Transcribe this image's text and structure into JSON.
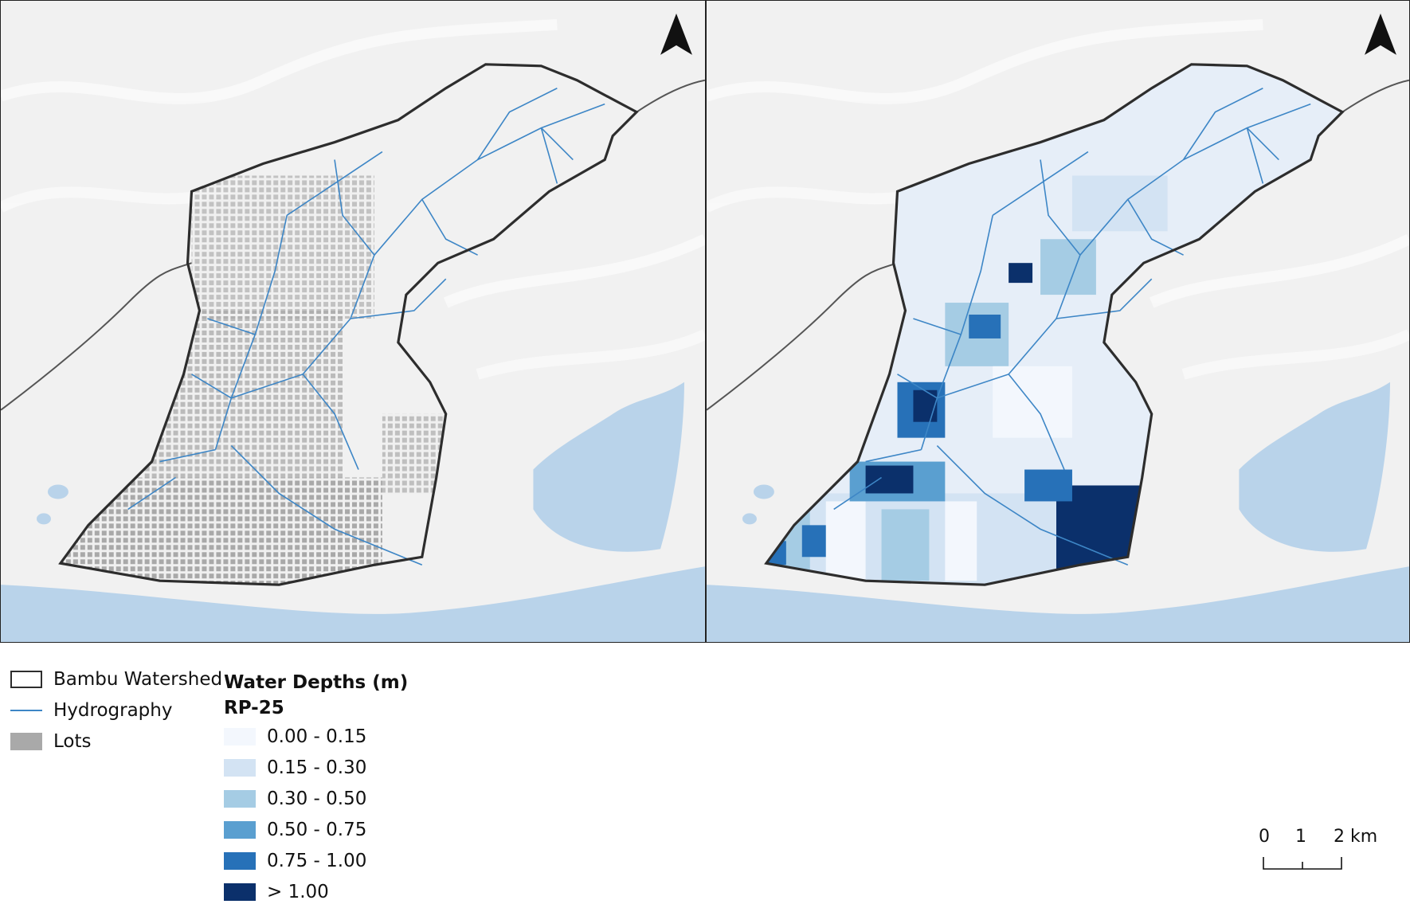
{
  "maps": {
    "left": {
      "content": "Bambu Watershed with hydrography and lots"
    },
    "right": {
      "content": "Bambu Watershed flood water depths RP-25"
    }
  },
  "legend": {
    "watershed": "Bambu Watershed",
    "hydrography": "Hydrography",
    "lots": "Lots",
    "depth_title": "Water Depths (m)",
    "scenario": "RP-25",
    "classes": [
      {
        "label": "0.00 - 0.15",
        "color": "#f3f7fd"
      },
      {
        "label": "0.15 - 0.30",
        "color": "#d3e3f3"
      },
      {
        "label": "0.30 - 0.50",
        "color": "#a5cce4"
      },
      {
        "label": "0.50 - 0.75",
        "color": "#5a9fd0"
      },
      {
        "label": "0.75 - 1.00",
        "color": "#2771b8"
      },
      {
        "label": "> 1.00",
        "color": "#0b306b"
      }
    ]
  },
  "scale_bar": {
    "labels": [
      "0",
      "1",
      "2 km"
    ]
  },
  "colors": {
    "watershed_outline": "#2d2d2d",
    "hydrography": "#3d86c6",
    "lots": "#a9a9a9",
    "water": "#b9d3ea",
    "terrain": "#efefef"
  },
  "icons": {
    "north_arrow": "north-arrow-icon"
  }
}
